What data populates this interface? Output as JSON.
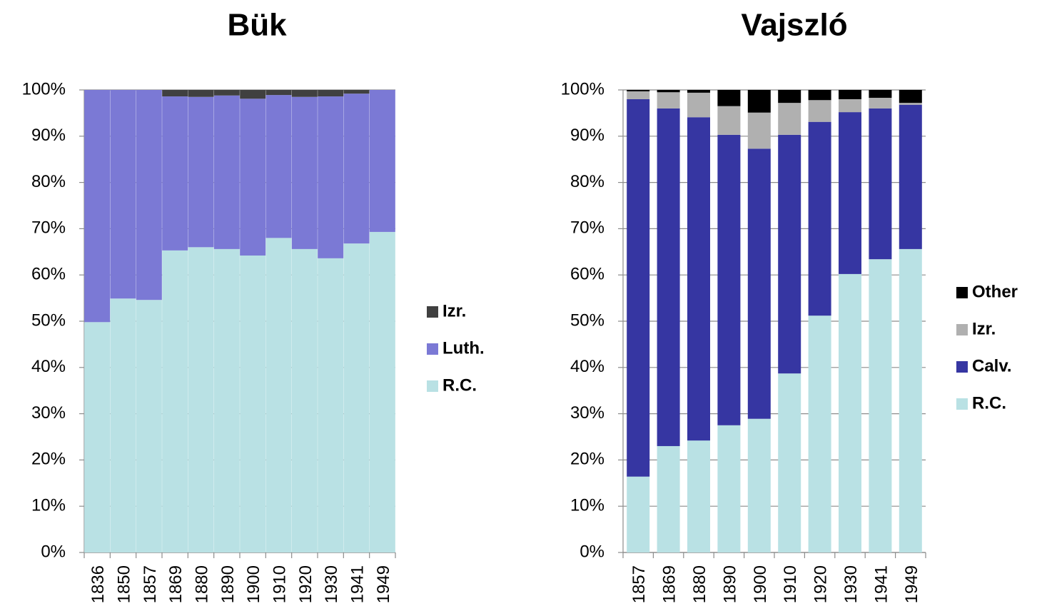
{
  "chart_data": [
    {
      "type": "stacked_bar",
      "title": "Bük",
      "categories": [
        "1836",
        "1850",
        "1857",
        "1869",
        "1880",
        "1890",
        "1900",
        "1910",
        "1920",
        "1930",
        "1941",
        "1949"
      ],
      "series": [
        {
          "name": "R.C.",
          "color": "#b9e1e4",
          "values": [
            49.8,
            54.9,
            54.6,
            65.3,
            66.0,
            65.6,
            64.2,
            68.0,
            65.6,
            63.6,
            66.8,
            69.3
          ]
        },
        {
          "name": "Luth.",
          "color": "#7b79d5",
          "values": [
            50.2,
            45.1,
            45.4,
            33.3,
            32.5,
            33.2,
            33.9,
            30.9,
            32.9,
            35.0,
            32.4,
            30.7
          ]
        },
        {
          "name": "Izr.",
          "color": "#404040",
          "values": [
            0,
            0,
            0,
            1.4,
            1.5,
            1.2,
            1.9,
            1.1,
            1.5,
            1.4,
            0.8,
            0
          ]
        }
      ],
      "ylim": [
        0,
        100
      ],
      "yticks": [
        {
          "value": 0,
          "label": "0%"
        },
        {
          "value": 10,
          "label": "10%"
        },
        {
          "value": 20,
          "label": "20%"
        },
        {
          "value": 30,
          "label": "30%"
        },
        {
          "value": 40,
          "label": "40%"
        },
        {
          "value": 50,
          "label": "50%"
        },
        {
          "value": 60,
          "label": "60%"
        },
        {
          "value": 70,
          "label": "70%"
        },
        {
          "value": 80,
          "label": "80%"
        },
        {
          "value": 90,
          "label": "90%"
        },
        {
          "value": 100,
          "label": "100%"
        }
      ],
      "grid": true,
      "legend": "right"
    },
    {
      "type": "stacked_bar",
      "title": "Vajszló",
      "categories": [
        "1857",
        "1869",
        "1880",
        "1890",
        "1900",
        "1910",
        "1920",
        "1930",
        "1941",
        "1949"
      ],
      "series": [
        {
          "name": "R.C.",
          "color": "#b9e1e4",
          "values": [
            16.4,
            23.0,
            24.2,
            27.5,
            28.9,
            38.7,
            51.2,
            60.2,
            63.4,
            65.6
          ]
        },
        {
          "name": "Calv.",
          "color": "#3636a2",
          "values": [
            81.6,
            73.0,
            69.9,
            62.8,
            58.4,
            51.6,
            41.9,
            35.0,
            32.6,
            31.2
          ]
        },
        {
          "name": "Izr.",
          "color": "#b0b0b0",
          "values": [
            1.7,
            3.5,
            5.3,
            6.2,
            7.8,
            6.9,
            4.7,
            2.8,
            2.3,
            0.4
          ]
        },
        {
          "name": "Other",
          "color": "#000000",
          "values": [
            0.3,
            0.5,
            0.6,
            3.5,
            4.9,
            2.8,
            2.2,
            2.0,
            1.7,
            2.8
          ]
        }
      ],
      "ylim": [
        0,
        100
      ],
      "yticks": [
        {
          "value": 0,
          "label": "0%"
        },
        {
          "value": 10,
          "label": "10%"
        },
        {
          "value": 20,
          "label": "20%"
        },
        {
          "value": 30,
          "label": "30%"
        },
        {
          "value": 40,
          "label": "40%"
        },
        {
          "value": 50,
          "label": "50%"
        },
        {
          "value": 60,
          "label": "60%"
        },
        {
          "value": 70,
          "label": "70%"
        },
        {
          "value": 80,
          "label": "80%"
        },
        {
          "value": 90,
          "label": "90%"
        },
        {
          "value": 100,
          "label": "100%"
        }
      ],
      "grid": true,
      "legend": "right"
    }
  ]
}
